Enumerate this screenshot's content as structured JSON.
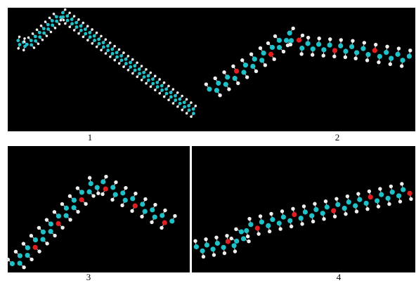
{
  "panels": [
    {
      "label": "1"
    },
    {
      "label": "2"
    },
    {
      "label": "3"
    },
    {
      "label": "4"
    }
  ]
}
